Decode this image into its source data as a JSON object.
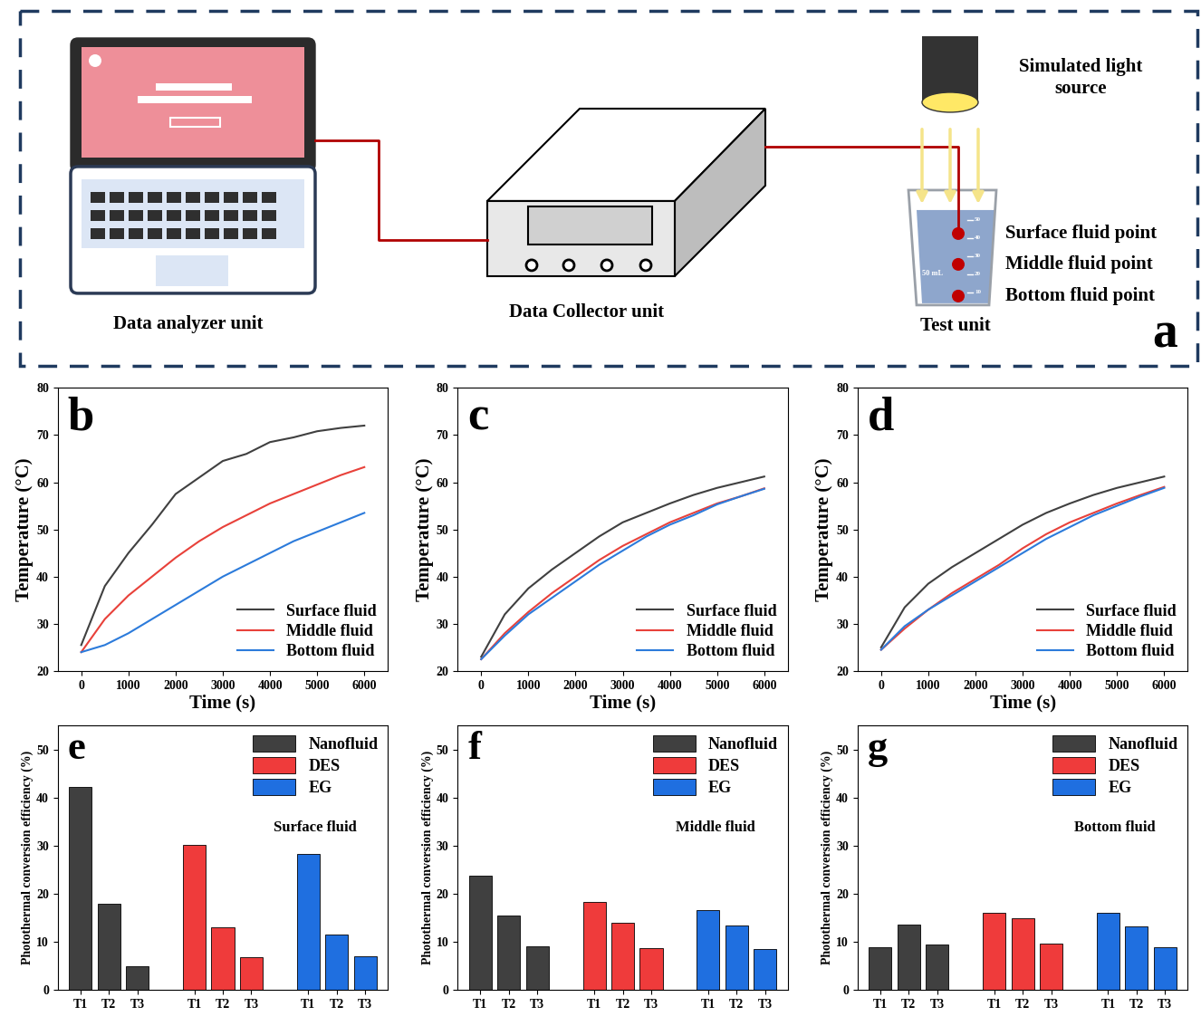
{
  "diagram": {
    "label": "a",
    "analyzer": "Data analyzer unit",
    "collector": "Data Collector unit",
    "test": "Test unit",
    "light_source": "Simulated light\nsource",
    "points": [
      "Surface fluid point",
      "Middle fluid point",
      "Bottom fluid point"
    ],
    "beaker_volume": "50 mL",
    "beaker_marks": [
      "50",
      "40",
      "30",
      "20",
      "10"
    ]
  },
  "chart_data": [
    {
      "type": "line",
      "label": "b",
      "x_label": "Time (s)",
      "y_label": "Temperature (°C)",
      "xlim": [
        -500,
        6500
      ],
      "xticks": [
        0,
        1000,
        2000,
        3000,
        4000,
        5000,
        6000
      ],
      "ylim": [
        20,
        80
      ],
      "yticks": [
        20,
        30,
        40,
        50,
        60,
        70,
        80
      ],
      "legend": "lower right",
      "x": [
        0,
        500,
        1000,
        1500,
        2000,
        2500,
        3000,
        3500,
        4000,
        4500,
        5000,
        5500,
        6000
      ],
      "series": [
        {
          "name": "Surface fluid",
          "color": "#404040",
          "line_style": "solid",
          "values": [
            25.5,
            38,
            45,
            51,
            57.5,
            61,
            64.5,
            66,
            68.5,
            69.5,
            70.8,
            71.5,
            72
          ]
        },
        {
          "name": "Middle fluid",
          "color": "#e8413a",
          "line_style": "solid",
          "values": [
            24,
            31,
            36,
            40,
            44,
            47.5,
            50.5,
            53,
            55.5,
            57.5,
            59.5,
            61.5,
            63.2
          ]
        },
        {
          "name": "Bottom fluid",
          "color": "#2c7bdb",
          "line_style": "solid",
          "values": [
            24,
            25.5,
            28,
            31,
            34,
            37,
            40,
            42.5,
            45,
            47.5,
            49.5,
            51.5,
            53.5
          ]
        }
      ]
    },
    {
      "type": "line",
      "label": "c",
      "x_label": "Time (s)",
      "y_label": "Temperature (°C)",
      "xlim": [
        -500,
        6500
      ],
      "xticks": [
        0,
        1000,
        2000,
        3000,
        4000,
        5000,
        6000
      ],
      "ylim": [
        20,
        80
      ],
      "yticks": [
        20,
        30,
        40,
        50,
        60,
        70,
        80
      ],
      "legend": "lower right",
      "x": [
        0,
        500,
        1000,
        1500,
        2000,
        2500,
        3000,
        3500,
        4000,
        4500,
        5000,
        5500,
        6000
      ],
      "series": [
        {
          "name": "Surface fluid",
          "color": "#404040",
          "line_style": "solid",
          "values": [
            23,
            32,
            37.5,
            41.5,
            45,
            48.5,
            51.5,
            53.5,
            55.5,
            57.3,
            58.8,
            60,
            61.2
          ]
        },
        {
          "name": "Middle fluid",
          "color": "#e8413a",
          "line_style": "solid",
          "values": [
            22.5,
            28,
            32.5,
            36.5,
            40,
            43.5,
            46.5,
            49,
            51.5,
            53.5,
            55.5,
            57,
            58.7
          ]
        },
        {
          "name": "Bottom fluid",
          "color": "#2c7bdb",
          "line_style": "solid",
          "values": [
            22.5,
            27.5,
            32,
            35.5,
            39,
            42.5,
            45.5,
            48.5,
            51,
            53,
            55.3,
            57,
            58.6
          ]
        }
      ]
    },
    {
      "type": "line",
      "label": "d",
      "x_label": "Time (s)",
      "y_label": "Temperature (°C)",
      "xlim": [
        -500,
        6500
      ],
      "xticks": [
        0,
        1000,
        2000,
        3000,
        4000,
        5000,
        6000
      ],
      "ylim": [
        20,
        80
      ],
      "yticks": [
        20,
        30,
        40,
        50,
        60,
        70,
        80
      ],
      "legend": "lower right",
      "x": [
        0,
        500,
        1000,
        1500,
        2000,
        2500,
        3000,
        3500,
        4000,
        4500,
        5000,
        5500,
        6000
      ],
      "series": [
        {
          "name": "Surface fluid",
          "color": "#404040",
          "line_style": "solid",
          "values": [
            25,
            33.5,
            38.5,
            42,
            45,
            48,
            51,
            53.5,
            55.5,
            57.3,
            58.8,
            60,
            61.2
          ]
        },
        {
          "name": "Middle fluid",
          "color": "#e8413a",
          "line_style": "solid",
          "values": [
            24.5,
            29,
            33,
            36.5,
            39.5,
            42.5,
            46,
            49,
            51.5,
            53.5,
            55.5,
            57.3,
            59
          ]
        },
        {
          "name": "Bottom fluid",
          "color": "#2c7bdb",
          "line_style": "solid",
          "values": [
            24.5,
            29.5,
            33,
            36,
            39,
            42,
            45,
            48,
            50.5,
            53,
            55,
            57,
            58.8
          ]
        }
      ]
    },
    {
      "type": "bar",
      "label": "e",
      "annotation": "Surface fluid",
      "y_label": "Photothermal conversion efficiency (%)",
      "ylim": [
        0,
        55
      ],
      "yticks": [
        0,
        10,
        20,
        30,
        40,
        50
      ],
      "legend": "upper right",
      "categories": [
        "T1",
        "T2",
        "T3"
      ],
      "series": [
        {
          "name": "Nanofluid",
          "color": "#404040",
          "values": [
            42.2,
            17.9,
            5
          ]
        },
        {
          "name": "DES",
          "color": "#ef3b3b",
          "values": [
            30.1,
            13,
            6.9
          ]
        },
        {
          "name": "EG",
          "color": "#1f6fe0",
          "values": [
            28.2,
            11.6,
            7
          ]
        }
      ]
    },
    {
      "type": "bar",
      "label": "f",
      "annotation": "Middle fluid",
      "y_label": "Photothermal conversion efficiency (%)",
      "ylim": [
        0,
        55
      ],
      "yticks": [
        0,
        10,
        20,
        30,
        40,
        50
      ],
      "legend": "upper right",
      "categories": [
        "T1",
        "T2",
        "T3"
      ],
      "series": [
        {
          "name": "Nanofluid",
          "color": "#404040",
          "values": [
            23.8,
            15.5,
            9.1
          ]
        },
        {
          "name": "DES",
          "color": "#ef3b3b",
          "values": [
            18.4,
            14,
            8.8
          ]
        },
        {
          "name": "EG",
          "color": "#1f6fe0",
          "values": [
            16.6,
            13.5,
            8.6
          ]
        }
      ]
    },
    {
      "type": "bar",
      "label": "g",
      "annotation": "Bottom fluid",
      "y_label": "Photothermal conversion efficiency (%)",
      "ylim": [
        0,
        55
      ],
      "yticks": [
        0,
        10,
        20,
        30,
        40,
        50
      ],
      "legend": "upper right",
      "categories": [
        "T1",
        "T2",
        "T3"
      ],
      "series": [
        {
          "name": "Nanofluid",
          "color": "#404040",
          "values": [
            9,
            13.7,
            9.5
          ]
        },
        {
          "name": "DES",
          "color": "#ef3b3b",
          "values": [
            16.1,
            15,
            9.7
          ]
        },
        {
          "name": "EG",
          "color": "#1f6fe0",
          "values": [
            16.1,
            13.3,
            9
          ]
        }
      ]
    }
  ]
}
